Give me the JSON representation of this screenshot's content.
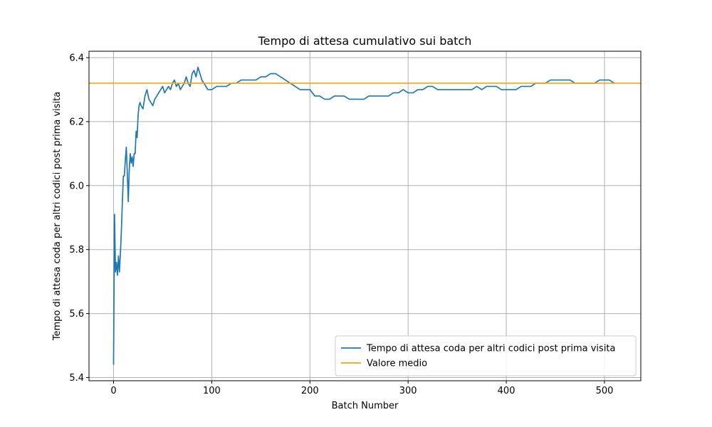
{
  "chart_data": {
    "type": "line",
    "title": "Tempo di attesa cumulativo sui batch",
    "xlabel": "Batch Number",
    "ylabel": "Tempo di attesa coda per altri codici post prima visita",
    "xlim": [
      -25,
      537
    ],
    "ylim": [
      5.39,
      6.42
    ],
    "xticks": [
      0,
      100,
      200,
      300,
      400,
      500
    ],
    "xtick_labels": [
      "0",
      "100",
      "200",
      "300",
      "400",
      "500"
    ],
    "yticks": [
      5.4,
      5.6,
      5.8,
      6.0,
      6.2,
      6.4
    ],
    "ytick_labels": [
      "5.4",
      "5.6",
      "5.8",
      "6.0",
      "6.2",
      "6.4"
    ],
    "grid": true,
    "legend_position": "lower-right",
    "series": [
      {
        "name": "Tempo di attesa coda per altri codici post prima visita",
        "color": "#1f77b4",
        "points": [
          [
            0,
            5.44
          ],
          [
            1,
            5.91
          ],
          [
            2,
            5.73
          ],
          [
            3,
            5.76
          ],
          [
            4,
            5.72
          ],
          [
            5,
            5.78
          ],
          [
            6,
            5.73
          ],
          [
            7,
            5.79
          ],
          [
            8,
            5.86
          ],
          [
            9,
            5.95
          ],
          [
            10,
            6.03
          ],
          [
            11,
            6.03
          ],
          [
            12,
            6.08
          ],
          [
            13,
            6.12
          ],
          [
            14,
            6.04
          ],
          [
            15,
            5.95
          ],
          [
            16,
            6.05
          ],
          [
            17,
            6.1
          ],
          [
            18,
            6.07
          ],
          [
            19,
            6.09
          ],
          [
            20,
            6.06
          ],
          [
            21,
            6.1
          ],
          [
            22,
            6.1
          ],
          [
            23,
            6.17
          ],
          [
            24,
            6.15
          ],
          [
            25,
            6.22
          ],
          [
            26,
            6.25
          ],
          [
            27,
            6.26
          ],
          [
            28,
            6.25
          ],
          [
            30,
            6.24
          ],
          [
            32,
            6.28
          ],
          [
            34,
            6.3
          ],
          [
            36,
            6.27
          ],
          [
            38,
            6.26
          ],
          [
            40,
            6.25
          ],
          [
            42,
            6.27
          ],
          [
            44,
            6.28
          ],
          [
            46,
            6.29
          ],
          [
            48,
            6.3
          ],
          [
            50,
            6.31
          ],
          [
            52,
            6.29
          ],
          [
            54,
            6.3
          ],
          [
            56,
            6.31
          ],
          [
            58,
            6.3
          ],
          [
            60,
            6.32
          ],
          [
            62,
            6.33
          ],
          [
            64,
            6.31
          ],
          [
            66,
            6.32
          ],
          [
            68,
            6.3
          ],
          [
            70,
            6.31
          ],
          [
            72,
            6.32
          ],
          [
            74,
            6.34
          ],
          [
            76,
            6.32
          ],
          [
            78,
            6.31
          ],
          [
            80,
            6.35
          ],
          [
            82,
            6.36
          ],
          [
            84,
            6.34
          ],
          [
            86,
            6.37
          ],
          [
            88,
            6.35
          ],
          [
            90,
            6.33
          ],
          [
            92,
            6.32
          ],
          [
            94,
            6.31
          ],
          [
            96,
            6.3
          ],
          [
            98,
            6.3
          ],
          [
            100,
            6.3
          ],
          [
            105,
            6.31
          ],
          [
            110,
            6.31
          ],
          [
            115,
            6.31
          ],
          [
            120,
            6.32
          ],
          [
            125,
            6.32
          ],
          [
            130,
            6.33
          ],
          [
            135,
            6.33
          ],
          [
            140,
            6.33
          ],
          [
            145,
            6.33
          ],
          [
            150,
            6.34
          ],
          [
            155,
            6.34
          ],
          [
            160,
            6.35
          ],
          [
            165,
            6.35
          ],
          [
            170,
            6.34
          ],
          [
            175,
            6.33
          ],
          [
            180,
            6.32
          ],
          [
            185,
            6.31
          ],
          [
            190,
            6.3
          ],
          [
            195,
            6.3
          ],
          [
            200,
            6.3
          ],
          [
            205,
            6.28
          ],
          [
            210,
            6.28
          ],
          [
            215,
            6.27
          ],
          [
            220,
            6.27
          ],
          [
            225,
            6.28
          ],
          [
            230,
            6.28
          ],
          [
            235,
            6.28
          ],
          [
            240,
            6.27
          ],
          [
            245,
            6.27
          ],
          [
            250,
            6.27
          ],
          [
            255,
            6.27
          ],
          [
            260,
            6.28
          ],
          [
            265,
            6.28
          ],
          [
            270,
            6.28
          ],
          [
            275,
            6.28
          ],
          [
            280,
            6.28
          ],
          [
            285,
            6.29
          ],
          [
            290,
            6.29
          ],
          [
            295,
            6.3
          ],
          [
            300,
            6.29
          ],
          [
            305,
            6.29
          ],
          [
            310,
            6.3
          ],
          [
            315,
            6.3
          ],
          [
            320,
            6.31
          ],
          [
            325,
            6.31
          ],
          [
            330,
            6.3
          ],
          [
            335,
            6.3
          ],
          [
            340,
            6.3
          ],
          [
            345,
            6.3
          ],
          [
            350,
            6.3
          ],
          [
            355,
            6.3
          ],
          [
            360,
            6.3
          ],
          [
            365,
            6.3
          ],
          [
            370,
            6.31
          ],
          [
            375,
            6.3
          ],
          [
            380,
            6.31
          ],
          [
            385,
            6.31
          ],
          [
            390,
            6.31
          ],
          [
            395,
            6.3
          ],
          [
            400,
            6.3
          ],
          [
            405,
            6.3
          ],
          [
            410,
            6.3
          ],
          [
            415,
            6.31
          ],
          [
            420,
            6.31
          ],
          [
            425,
            6.31
          ],
          [
            430,
            6.32
          ],
          [
            435,
            6.32
          ],
          [
            440,
            6.32
          ],
          [
            445,
            6.33
          ],
          [
            450,
            6.33
          ],
          [
            455,
            6.33
          ],
          [
            460,
            6.33
          ],
          [
            465,
            6.33
          ],
          [
            470,
            6.32
          ],
          [
            475,
            6.32
          ],
          [
            480,
            6.32
          ],
          [
            485,
            6.32
          ],
          [
            490,
            6.32
          ],
          [
            495,
            6.33
          ],
          [
            500,
            6.33
          ],
          [
            505,
            6.33
          ],
          [
            510,
            6.32
          ]
        ]
      },
      {
        "name": "Valore medio",
        "color": "#ffa500",
        "type": "hline",
        "y": 6.32
      }
    ]
  }
}
